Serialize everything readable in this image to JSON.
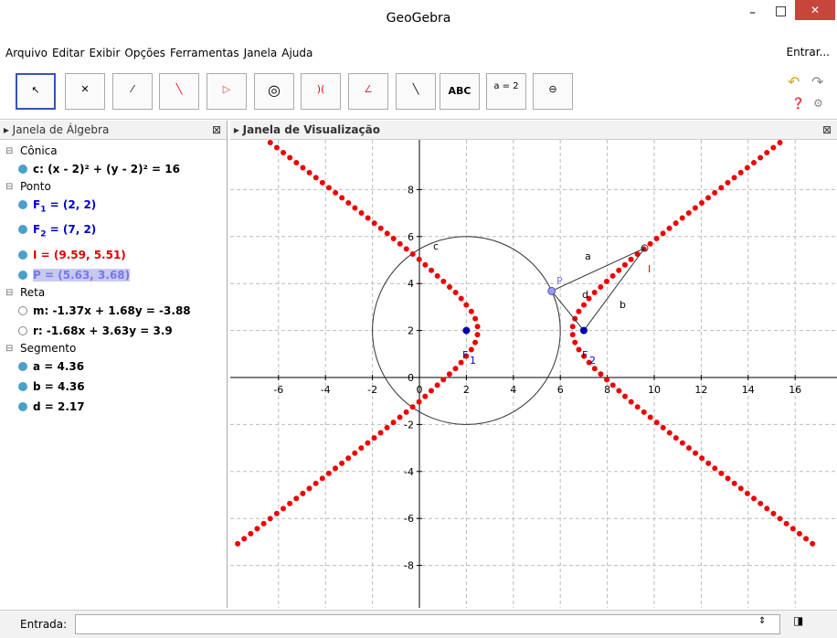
{
  "window": {
    "title": "GeoGebra",
    "login": "Entrar..."
  },
  "menu": [
    "Arquivo",
    "Editar",
    "Exibir",
    "Opções",
    "Ferramentas",
    "Janela",
    "Ajuda"
  ],
  "toolbar": {
    "text_tool": "ABC",
    "slider_tool": "a = 2"
  },
  "algebra": {
    "title": "Janela de Álgebra",
    "groups": [
      {
        "name": "Cônica",
        "items": [
          {
            "text": "c: (x - 2)² + (y - 2)² = 16",
            "color": "#000000"
          }
        ]
      },
      {
        "name": "Ponto",
        "items": [
          {
            "label": "F",
            "sub": "1",
            "text": " = (2, 2)",
            "color": "#0000cc"
          },
          {
            "label": "F",
            "sub": "2",
            "text": " = (7, 2)",
            "color": "#0000cc"
          },
          {
            "text": "I = (9.59, 5.51)",
            "color": "#e00000"
          },
          {
            "text": "P = (5.63, 3.68)",
            "color": "#7777ee",
            "selected": true
          }
        ]
      },
      {
        "name": "Reta",
        "items": [
          {
            "text": "m: -1.37x + 1.68y = -3.88",
            "color": "#000000",
            "hidden": true
          },
          {
            "text": "r: -1.68x + 3.63y = 3.9",
            "color": "#000000",
            "hidden": true
          }
        ]
      },
      {
        "name": "Segmento",
        "items": [
          {
            "text": "a = 4.36",
            "color": "#000000"
          },
          {
            "text": "b = 4.36",
            "color": "#000000"
          },
          {
            "text": "d = 2.17",
            "color": "#000000"
          }
        ]
      }
    ]
  },
  "graphics": {
    "title": "Janela de Visualização",
    "xticks": [
      -6,
      -4,
      -2,
      0,
      2,
      4,
      6,
      8,
      10,
      12,
      14,
      16
    ],
    "yticks": [
      -8,
      -6,
      -4,
      -2,
      0,
      2,
      4,
      6,
      8
    ],
    "labels": {
      "c": "c",
      "a": "a",
      "b": "b",
      "d": "d",
      "P": "P",
      "I": "I",
      "F1": "F",
      "F1sub": "1",
      "F2": "F",
      "F2sub": "2"
    }
  },
  "input": {
    "label": "Entrada:"
  }
}
